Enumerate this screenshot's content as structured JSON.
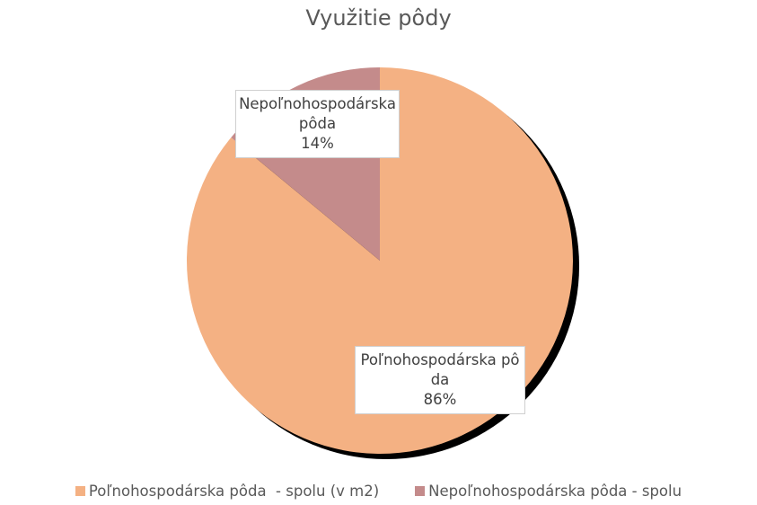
{
  "chart_data": {
    "type": "pie",
    "title": "Využitie pôdy",
    "series": [
      {
        "name": "Poľnohospodárska pôda  - spolu (v m2)",
        "color": "#f4b183"
      },
      {
        "name": "Nepoľnohospodárska pôda - spolu",
        "color": "#c48b8b"
      }
    ],
    "labels": [
      "Poľnohospodárska pôda",
      "Nepoľnohospodárska pôda"
    ],
    "values": [
      86,
      14
    ],
    "value_labels": [
      "86%",
      "14%"
    ],
    "legend": "bottom"
  }
}
